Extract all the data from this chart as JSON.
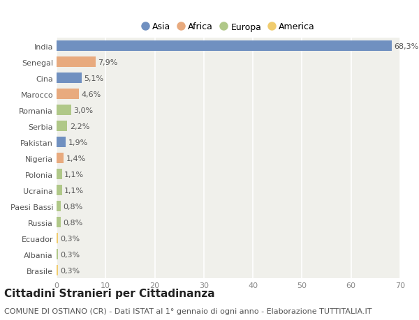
{
  "countries": [
    "India",
    "Senegal",
    "Cina",
    "Marocco",
    "Romania",
    "Serbia",
    "Pakistan",
    "Nigeria",
    "Polonia",
    "Ucraina",
    "Paesi Bassi",
    "Russia",
    "Ecuador",
    "Albania",
    "Brasile"
  ],
  "values": [
    68.3,
    7.9,
    5.1,
    4.6,
    3.0,
    2.2,
    1.9,
    1.4,
    1.1,
    1.1,
    0.8,
    0.8,
    0.3,
    0.3,
    0.3
  ],
  "labels": [
    "68,3%",
    "7,9%",
    "5,1%",
    "4,6%",
    "3,0%",
    "2,2%",
    "1,9%",
    "1,4%",
    "1,1%",
    "1,1%",
    "0,8%",
    "0,8%",
    "0,3%",
    "0,3%",
    "0,3%"
  ],
  "continents": [
    "Asia",
    "Africa",
    "Asia",
    "Africa",
    "Europa",
    "Europa",
    "Asia",
    "Africa",
    "Europa",
    "Europa",
    "Europa",
    "Europa",
    "America",
    "Europa",
    "America"
  ],
  "continent_colors": {
    "Asia": "#7090c0",
    "Africa": "#e8aa7e",
    "Europa": "#b0c888",
    "America": "#f0cc6e"
  },
  "legend_order": [
    "Asia",
    "Africa",
    "Europa",
    "America"
  ],
  "title": "Cittadini Stranieri per Cittadinanza",
  "subtitle": "COMUNE DI OSTIANO (CR) - Dati ISTAT al 1° gennaio di ogni anno - Elaborazione TUTTITALIA.IT",
  "xlim": [
    0,
    70
  ],
  "xticks": [
    0,
    10,
    20,
    30,
    40,
    50,
    60,
    70
  ],
  "chart_bg": "#f0f0eb",
  "outer_bg": "#ffffff",
  "grid_color": "#ffffff",
  "bar_height": 0.65,
  "title_fontsize": 11,
  "subtitle_fontsize": 8,
  "label_fontsize": 8,
  "tick_fontsize": 8,
  "legend_fontsize": 9
}
